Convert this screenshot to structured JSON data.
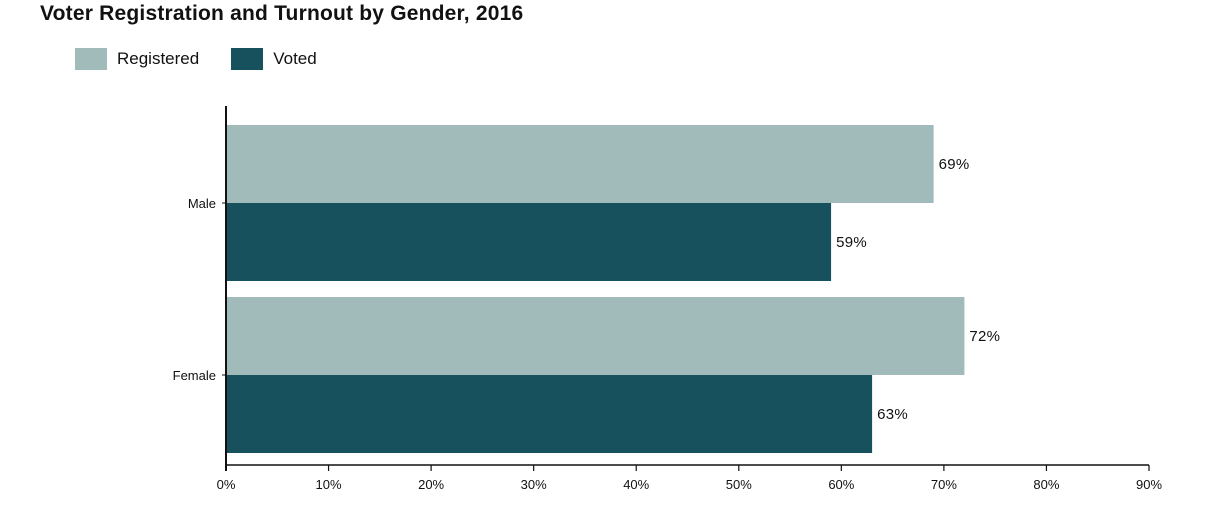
{
  "chart_data": {
    "type": "bar",
    "orientation": "horizontal",
    "title": "Voter Registration and Turnout by Gender, 2016",
    "categories": [
      "Male",
      "Female"
    ],
    "series": [
      {
        "name": "Registered",
        "color": "#a1baba",
        "values": [
          69,
          72
        ],
        "labels": [
          "69%",
          "72%"
        ]
      },
      {
        "name": "Voted",
        "color": "#18515e",
        "values": [
          59,
          63
        ],
        "labels": [
          "59%",
          "63%"
        ]
      }
    ],
    "xlim": [
      0,
      90
    ],
    "xticks": [
      0,
      10,
      20,
      30,
      40,
      50,
      60,
      70,
      80,
      90
    ],
    "xtick_labels": [
      "0%",
      "10%",
      "20%",
      "30%",
      "40%",
      "50%",
      "60%",
      "70%",
      "80%",
      "90%"
    ],
    "legend_position": "top-left",
    "grid": false
  }
}
